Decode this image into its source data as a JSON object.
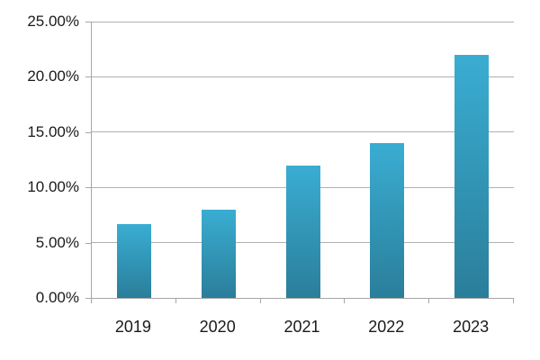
{
  "chart_data": {
    "type": "bar",
    "title": "",
    "xlabel": "",
    "ylabel": "",
    "categories": [
      "2019",
      "2020",
      "2021",
      "2022",
      "2023"
    ],
    "values": [
      6.7,
      8,
      12,
      14,
      22
    ],
    "ylim": [
      0,
      25
    ],
    "y_ticks": [
      {
        "value": 0,
        "label": "0.00%"
      },
      {
        "value": 5,
        "label": "5.00%"
      },
      {
        "value": 10,
        "label": "10.00%"
      },
      {
        "value": 15,
        "label": "15.00%"
      },
      {
        "value": 20,
        "label": "20.00%"
      },
      {
        "value": 25,
        "label": "25.00%"
      }
    ],
    "grid": true,
    "legend": null,
    "colors": {
      "bar_gradient_top": "#3aadd2",
      "bar_gradient_bottom": "#2a7e9a",
      "gridline": "#b0b0b0",
      "axis_line": "#a6a6a6",
      "tick_text": "#1a1a1a",
      "background": "#ffffff"
    }
  }
}
